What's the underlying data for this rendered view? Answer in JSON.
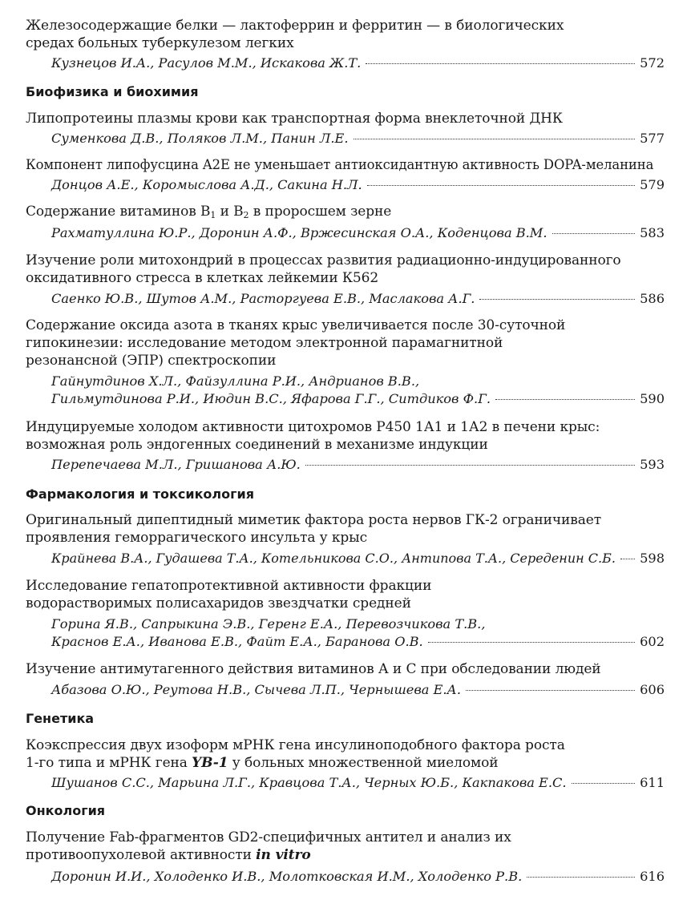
{
  "entries": [
    {
      "title_lines": [
        "Железосодержащие белки — лактоферрин и ферритин — в биологических",
        "средах больных туберкулезом легких"
      ],
      "authors_lines": [
        "Кузнецов И.А., Расулов М.М., Искакова Ж.Т."
      ],
      "page": "572"
    },
    {
      "heading": "Биофизика и биохимия"
    },
    {
      "title_lines": [
        "Липопротеины плазмы крови как транспортная форма внеклеточной ДНК"
      ],
      "authors_lines": [
        "Суменкова Д.В., Поляков Л.М., Панин Л.Е."
      ],
      "page": "577"
    },
    {
      "title_lines": [
        "Компонент липофусцина A2E не уменьшает антиоксидантную активность DOPA-меланина"
      ],
      "authors_lines": [
        "Донцов А.Е., Коромыслова А.Д., Сакина Н.Л."
      ],
      "page": "579"
    },
    {
      "title_parts": [
        "Содержание витаминов В",
        "1",
        " и В",
        "2",
        " в проросшем зерне"
      ],
      "authors_lines": [
        "Рахматуллина Ю.Р., Доронин А.Ф., Вржесинская О.А., Коденцова В.М."
      ],
      "page": "583"
    },
    {
      "title_lines": [
        "Изучение роли митохондрий в процессах развития радиационно-индуцированного",
        "оксидативного стресса в клетках лейкемии К562"
      ],
      "authors_lines": [
        "Саенко Ю.В., Шутов А.М., Расторгуева Е.В., Маслакова А.Г."
      ],
      "page": "586"
    },
    {
      "title_lines": [
        "Содержание оксида азота в тканях крыс увеличивается после 30-суточной",
        "гипокинезии: исследование методом электронной парамагнитной",
        "резонансной (ЭПР) спектроскопии"
      ],
      "authors_lines": [
        "Гайнутдинов Х.Л., Файзуллина Р.И., Андрианов В.В.,",
        "Гильмутдинова Р.И., Июдин В.С., Яфарова Г.Г., Ситдиков Ф.Г."
      ],
      "page": "590"
    },
    {
      "title_lines": [
        "Индуцируемые холодом активности цитохромов Р450 1А1 и 1А2 в печени крыс:",
        "возможная роль эндогенных соединений в механизме индукции"
      ],
      "authors_lines": [
        "Перепечаева М.Л., Гришанова А.Ю."
      ],
      "page": "593"
    },
    {
      "heading": "Фармакология и токсикология"
    },
    {
      "title_lines": [
        "Оригинальный дипептидный миметик фактора роста нервов ГК-2 ограничивает",
        "проявления геморрагического инсульта у крыс"
      ],
      "authors_lines": [
        "Крайнева В.А., Гудашева Т.А., Котельникова С.О., Антипова Т.А., Середенин С.Б."
      ],
      "page": "598"
    },
    {
      "title_lines": [
        "Исследование гепатопротективной активности фракции",
        "водорастворимых полисахаридов звездчатки средней"
      ],
      "authors_lines": [
        "Горина Я.В., Сапрыкина Э.В., Геренг Е.А., Перевозчикова Т.В.,",
        "Краснов Е.А., Иванова Е.В., Файт Е.А., Баранова О.В."
      ],
      "page": "602"
    },
    {
      "title_lines": [
        "Изучение антимутагенного действия витаминов А и С при обследовании людей"
      ],
      "authors_lines": [
        "Абазова О.Ю., Реутова Н.В., Сычева Л.П., Чернышева Е.А."
      ],
      "page": "606"
    },
    {
      "heading": "Генетика"
    },
    {
      "title_lines": [
        "Коэкспрессия двух изоформ мРНК гена инсулиноподобного фактора роста"
      ],
      "title_line2_parts": [
        "1-го типа и мРНК гена ",
        "YB-1",
        " у больных множественной миеломой"
      ],
      "authors_lines": [
        "Шушанов С.С., Марьина Л.Г., Кравцова Т.А., Черных Ю.Б., Какпакова Е.С."
      ],
      "page": "611"
    },
    {
      "heading": "Онкология"
    },
    {
      "title_lines": [
        "Получение Fab-фрагментов GD2-специфичных антител и анализ их"
      ],
      "title_line2_parts": [
        "противоопухолевой активности ",
        "in vitro"
      ],
      "authors_lines": [
        "Доронин И.И., Холоденко И.В., Молотковская И.М., Холоденко Р.В."
      ],
      "page": "616"
    }
  ]
}
